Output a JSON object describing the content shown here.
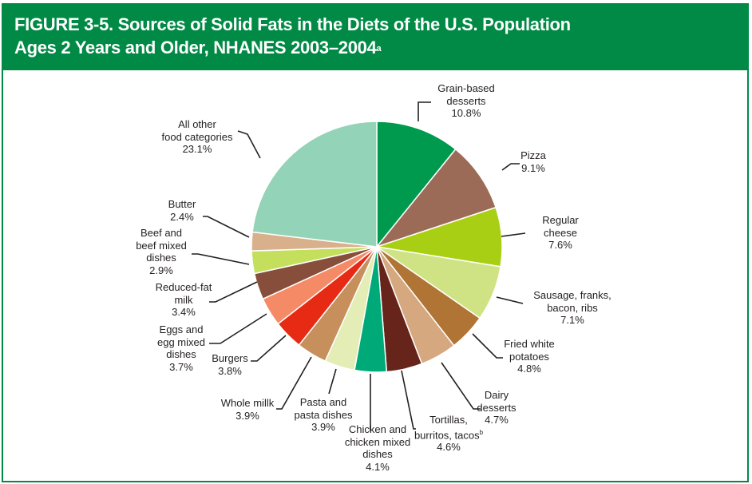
{
  "header": {
    "title_line1": "FIGURE 3-5. Sources of Solid Fats in the Diets of the U.S. Population",
    "title_line2": "Ages 2 Years and Older, NHANES 2003–2004",
    "title_sup": "a"
  },
  "chart_data": {
    "type": "pie",
    "title": "Sources of Solid Fats in the Diets of the U.S. Population Ages 2 Years and Older, NHANES 2003–2004",
    "start": "top",
    "direction": "clockwise",
    "slices": [
      {
        "label": "Grain-based desserts",
        "lines": [
          "Grain-based",
          "desserts"
        ],
        "value": 10.8,
        "value_label": "10.8%",
        "color": "#009a4e"
      },
      {
        "label": "Pizza",
        "lines": [
          "Pizza"
        ],
        "value": 9.1,
        "value_label": "9.1%",
        "color": "#9b6b57"
      },
      {
        "label": "Regular cheese",
        "lines": [
          "Regular",
          "cheese"
        ],
        "value": 7.6,
        "value_label": "7.6%",
        "color": "#a9cf15"
      },
      {
        "label": "Sausage, franks, bacon, ribs",
        "lines": [
          "Sausage, franks,",
          "bacon, ribs"
        ],
        "value": 7.1,
        "value_label": "7.1%",
        "color": "#cfe385"
      },
      {
        "label": "Fried white potatoes",
        "lines": [
          "Fried white",
          "potatoes"
        ],
        "value": 4.8,
        "value_label": "4.8%",
        "color": "#b07434"
      },
      {
        "label": "Dairy desserts",
        "lines": [
          "Dairy",
          "desserts"
        ],
        "value": 4.7,
        "value_label": "4.7%",
        "color": "#d5a87f"
      },
      {
        "label": "Tortillas, burritos, tacos",
        "lines": [
          "Tortillas,",
          "burritos, tacos"
        ],
        "sup": "b",
        "value": 4.6,
        "value_label": "4.6%",
        "color": "#66241a"
      },
      {
        "label": "Chicken and chicken mixed dishes",
        "lines": [
          "Chicken and",
          "chicken mixed",
          "dishes"
        ],
        "value": 4.1,
        "value_label": "4.1%",
        "color": "#00a978"
      },
      {
        "label": "Pasta and pasta dishes",
        "lines": [
          "Pasta and",
          "pasta dishes"
        ],
        "value": 3.9,
        "value_label": "3.9%",
        "color": "#e3edb5"
      },
      {
        "label": "Whole milk",
        "lines": [
          "Whole millk"
        ],
        "value": 3.9,
        "value_label": "3.9%",
        "color": "#c68f5c"
      },
      {
        "label": "Burgers",
        "lines": [
          "Burgers"
        ],
        "value": 3.8,
        "value_label": "3.8%",
        "color": "#e72a14"
      },
      {
        "label": "Eggs and egg mixed dishes",
        "lines": [
          "Eggs and",
          "egg mixed",
          "dishes"
        ],
        "value": 3.7,
        "value_label": "3.7%",
        "color": "#f48a66"
      },
      {
        "label": "Reduced-fat milk",
        "lines": [
          "Reduced-fat",
          "milk"
        ],
        "value": 3.4,
        "value_label": "3.4%",
        "color": "#874f3b"
      },
      {
        "label": "Beef and beef mixed dishes",
        "lines": [
          "Beef and",
          "beef mixed",
          "dishes"
        ],
        "value": 2.9,
        "value_label": "2.9%",
        "color": "#c3df5c"
      },
      {
        "label": "Butter",
        "lines": [
          "Butter"
        ],
        "value": 2.4,
        "value_label": "2.4%",
        "color": "#d9b08c"
      },
      {
        "label": "All other food categories",
        "lines": [
          "All other",
          "food categories"
        ],
        "value": 23.1,
        "value_label": "23.1%",
        "color": "#93d3b8"
      }
    ]
  }
}
